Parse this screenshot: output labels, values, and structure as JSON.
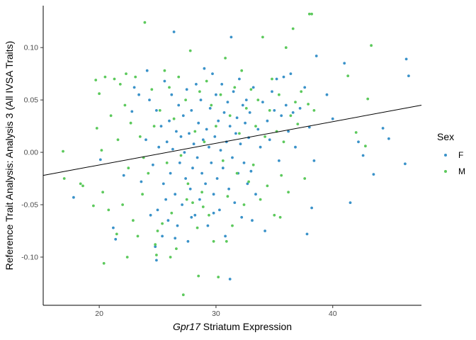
{
  "chart_data": {
    "type": "scatter",
    "xlabel_italic": "Gpr17",
    "xlabel_rest": " Striatum Expression",
    "ylabel": "Reference Trait Analysis: Analysis 3 (All IVSA Traits)",
    "xlim": [
      15.2,
      47.6
    ],
    "ylim": [
      -0.146,
      0.14
    ],
    "x_ticks": [
      20,
      30,
      40
    ],
    "x_tick_labels": [
      "20",
      "30",
      "40"
    ],
    "y_ticks": [
      -0.1,
      -0.05,
      0.0,
      0.05,
      0.1
    ],
    "y_tick_labels": [
      "-0.10",
      "-0.05",
      "0.00",
      "0.05",
      "0.10"
    ],
    "grid": false,
    "legend": {
      "title": "Sex",
      "placement": "right",
      "entries": [
        {
          "label": "F",
          "color": "#3a92c9"
        },
        {
          "label": "M",
          "color": "#5cc95c"
        }
      ]
    },
    "trend_line": {
      "x": [
        15.2,
        47.6
      ],
      "y": [
        -0.022,
        0.045
      ],
      "color": "#000000"
    },
    "series": [
      {
        "name": "F",
        "color": "#3a92c9",
        "points": [
          [
            17.8,
            -0.043
          ],
          [
            20.1,
            -0.007
          ],
          [
            21.2,
            -0.072
          ],
          [
            21.4,
            -0.083
          ],
          [
            22.1,
            -0.022
          ],
          [
            22.8,
            0.039
          ],
          [
            23.0,
            0.062
          ],
          [
            23.4,
            0.055
          ],
          [
            23.6,
            -0.028
          ],
          [
            24.0,
            0.012
          ],
          [
            24.1,
            0.078
          ],
          [
            24.3,
            0.05
          ],
          [
            24.4,
            -0.06
          ],
          [
            24.6,
            -0.012
          ],
          [
            24.8,
            -0.09
          ],
          [
            24.9,
            0.04
          ],
          [
            25.0,
            -0.055
          ],
          [
            25.1,
            0.005
          ],
          [
            25.3,
            0.025
          ],
          [
            25.4,
            -0.08
          ],
          [
            25.5,
            -0.03
          ],
          [
            25.6,
            0.068
          ],
          [
            25.7,
            -0.045
          ],
          [
            25.8,
            0.01
          ],
          [
            25.9,
            -0.065
          ],
          [
            26.0,
            0.03
          ],
          [
            26.1,
            -0.02
          ],
          [
            26.2,
            0.055
          ],
          [
            26.3,
            0.003
          ],
          [
            26.4,
            0.115
          ],
          [
            26.5,
            -0.04
          ],
          [
            26.6,
            0.02
          ],
          [
            26.7,
            -0.07
          ],
          [
            26.8,
            0.045
          ],
          [
            26.9,
            -0.01
          ],
          [
            27.0,
            0.015
          ],
          [
            27.1,
            -0.05
          ],
          [
            27.2,
            0.035
          ],
          [
            27.3,
            0.0
          ],
          [
            27.4,
            -0.025
          ],
          [
            27.5,
            0.06
          ],
          [
            27.6,
            -0.085
          ],
          [
            27.7,
            0.018
          ],
          [
            27.8,
            -0.035
          ],
          [
            27.9,
            0.04
          ],
          [
            28.0,
            -0.015
          ],
          [
            28.1,
            0.008
          ],
          [
            28.2,
            -0.06
          ],
          [
            28.3,
            0.065
          ],
          [
            28.4,
            -0.005
          ],
          [
            28.5,
            0.028
          ],
          [
            28.6,
            -0.045
          ],
          [
            28.7,
            0.05
          ],
          [
            28.8,
            -0.02
          ],
          [
            28.9,
            0.012
          ],
          [
            29.0,
            0.08
          ],
          [
            29.1,
            -0.03
          ],
          [
            29.2,
            0.022
          ],
          [
            29.3,
            -0.07
          ],
          [
            29.4,
            0.005
          ],
          [
            29.5,
            0.042
          ],
          [
            29.6,
            -0.01
          ],
          [
            29.7,
            0.075
          ],
          [
            29.8,
            -0.04
          ],
          [
            29.9,
            0.015
          ],
          [
            30.0,
            0.055
          ],
          [
            30.1,
            -0.025
          ],
          [
            30.2,
            0.03
          ],
          [
            30.3,
            -0.055
          ],
          [
            30.4,
            0.002
          ],
          [
            30.5,
            0.065
          ],
          [
            30.6,
            -0.015
          ],
          [
            30.7,
            0.038
          ],
          [
            30.8,
            -0.08
          ],
          [
            30.9,
            0.01
          ],
          [
            31.0,
            0.048
          ],
          [
            31.1,
            -0.035
          ],
          [
            31.2,
            0.025
          ],
          [
            31.3,
            0.11
          ],
          [
            31.4,
            -0.005
          ],
          [
            31.5,
            0.058
          ],
          [
            31.6,
            -0.048
          ],
          [
            31.7,
            0.018
          ],
          [
            31.8,
            0.033
          ],
          [
            31.9,
            -0.02
          ],
          [
            32.0,
            0.07
          ],
          [
            32.1,
            0.008
          ],
          [
            32.2,
            -0.062
          ],
          [
            32.3,
            0.045
          ],
          [
            32.4,
            -0.01
          ],
          [
            32.5,
            0.028
          ],
          [
            32.6,
            0.05
          ],
          [
            32.7,
            -0.03
          ],
          [
            32.8,
            0.014
          ],
          [
            32.9,
            0.038
          ],
          [
            33.0,
            -0.018
          ],
          [
            33.2,
            0.062
          ],
          [
            33.4,
            -0.04
          ],
          [
            33.6,
            0.022
          ],
          [
            33.8,
            0.005
          ],
          [
            34.0,
            0.048
          ],
          [
            34.2,
            -0.075
          ],
          [
            34.4,
            0.03
          ],
          [
            34.6,
            0.012
          ],
          [
            34.8,
            0.058
          ],
          [
            35.0,
            0.04
          ],
          [
            35.2,
            0.07
          ],
          [
            35.4,
            -0.008
          ],
          [
            35.6,
            0.035
          ],
          [
            35.8,
            0.072
          ],
          [
            36.0,
            0.045
          ],
          [
            36.2,
            0.02
          ],
          [
            36.4,
            0.075
          ],
          [
            36.6,
            0.038
          ],
          [
            36.8,
            0.005
          ],
          [
            37.2,
            0.042
          ],
          [
            37.6,
            0.062
          ],
          [
            37.8,
            -0.078
          ],
          [
            38.0,
            0.024
          ],
          [
            38.2,
            -0.053
          ],
          [
            38.4,
            -0.008
          ],
          [
            38.6,
            0.092
          ],
          [
            39.5,
            0.055
          ],
          [
            40.0,
            0.032
          ],
          [
            41.0,
            0.085
          ],
          [
            41.5,
            -0.048
          ],
          [
            42.2,
            0.01
          ],
          [
            42.6,
            -0.003
          ],
          [
            43.5,
            -0.021
          ],
          [
            44.3,
            0.023
          ],
          [
            44.8,
            0.013
          ],
          [
            46.2,
            -0.011
          ],
          [
            46.3,
            0.089
          ],
          [
            46.5,
            0.073
          ],
          [
            26.5,
            -0.082
          ],
          [
            27.9,
            -0.062
          ],
          [
            31.2,
            -0.121
          ],
          [
            29.8,
            -0.058
          ],
          [
            33.1,
            -0.065
          ],
          [
            24.9,
            -0.103
          ]
        ]
      },
      {
        "name": "M",
        "color": "#5cc95c",
        "points": [
          [
            16.9,
            0.001
          ],
          [
            17.0,
            -0.025
          ],
          [
            18.4,
            -0.03
          ],
          [
            18.6,
            -0.032
          ],
          [
            19.5,
            -0.051
          ],
          [
            19.7,
            0.069
          ],
          [
            19.8,
            0.023
          ],
          [
            20.0,
            0.056
          ],
          [
            20.2,
            0.002
          ],
          [
            20.3,
            -0.038
          ],
          [
            20.4,
            -0.106
          ],
          [
            20.5,
            0.072
          ],
          [
            20.8,
            -0.055
          ],
          [
            21.0,
            0.035
          ],
          [
            21.3,
            0.07
          ],
          [
            21.5,
            -0.078
          ],
          [
            21.6,
            0.012
          ],
          [
            21.8,
            0.065
          ],
          [
            22.0,
            -0.05
          ],
          [
            22.2,
            0.045
          ],
          [
            22.3,
            0.075
          ],
          [
            22.5,
            -0.015
          ],
          [
            22.7,
            0.028
          ],
          [
            22.9,
            -0.065
          ],
          [
            23.1,
            0.072
          ],
          [
            23.3,
            -0.08
          ],
          [
            23.5,
            0.015
          ],
          [
            23.7,
            -0.04
          ],
          [
            23.9,
            0.124
          ],
          [
            24.2,
            -0.02
          ],
          [
            24.5,
            0.06
          ],
          [
            24.7,
            0.025
          ],
          [
            24.9,
            -0.098
          ],
          [
            25.2,
            0.04
          ],
          [
            25.4,
            -0.068
          ],
          [
            25.6,
            0.078
          ],
          [
            25.8,
            -0.01
          ],
          [
            26.0,
            0.062
          ],
          [
            26.2,
            -0.058
          ],
          [
            26.4,
            0.032
          ],
          [
            26.6,
            -0.092
          ],
          [
            26.8,
            0.072
          ],
          [
            27.0,
            -0.003
          ],
          [
            27.2,
            -0.136
          ],
          [
            27.4,
            0.05
          ],
          [
            27.6,
            -0.03
          ],
          [
            27.8,
            0.097
          ],
          [
            28.0,
            -0.048
          ],
          [
            28.2,
            0.02
          ],
          [
            28.4,
            -0.072
          ],
          [
            28.6,
            0.058
          ],
          [
            28.8,
            -0.038
          ],
          [
            29.0,
            0.01
          ],
          [
            29.2,
            0.068
          ],
          [
            29.4,
            -0.06
          ],
          [
            29.6,
            0.045
          ],
          [
            29.8,
            -0.085
          ],
          [
            30.0,
            0.025
          ],
          [
            30.2,
            -0.119
          ],
          [
            30.4,
            0.055
          ],
          [
            30.6,
            -0.008
          ],
          [
            30.8,
            0.09
          ],
          [
            31.0,
            -0.042
          ],
          [
            31.2,
            0.035
          ],
          [
            31.4,
            -0.07
          ],
          [
            31.6,
            0.062
          ],
          [
            31.8,
            -0.02
          ],
          [
            32.0,
            0.018
          ],
          [
            32.2,
            0.078
          ],
          [
            32.4,
            -0.05
          ],
          [
            32.6,
            0.042
          ],
          [
            32.8,
            -0.028
          ],
          [
            33.0,
            0.06
          ],
          [
            33.2,
            -0.012
          ],
          [
            33.4,
            0.025
          ],
          [
            33.6,
            0.05
          ],
          [
            33.8,
            -0.045
          ],
          [
            34.0,
            0.11
          ],
          [
            34.2,
            0.015
          ],
          [
            34.4,
            -0.032
          ],
          [
            34.6,
            0.04
          ],
          [
            34.8,
            0.07
          ],
          [
            35.0,
            -0.06
          ],
          [
            35.2,
            0.02
          ],
          [
            35.4,
            0.055
          ],
          [
            35.6,
            -0.022
          ],
          [
            35.8,
            0.01
          ],
          [
            36.0,
            0.1
          ],
          [
            36.2,
            -0.038
          ],
          [
            36.4,
            0.035
          ],
          [
            36.6,
            0.118
          ],
          [
            36.8,
            0.048
          ],
          [
            37.0,
            0.027
          ],
          [
            37.3,
            0.058
          ],
          [
            37.6,
            -0.025
          ],
          [
            37.9,
            0.046
          ],
          [
            38.2,
            0.132
          ],
          [
            38.4,
            0.04
          ],
          [
            41.3,
            0.073
          ],
          [
            42.0,
            0.019
          ],
          [
            42.8,
            0.006
          ],
          [
            43.0,
            0.051
          ],
          [
            43.3,
            0.102
          ],
          [
            38.0,
            0.132
          ],
          [
            28.5,
            -0.118
          ],
          [
            26.1,
            -0.1
          ],
          [
            25.0,
            -0.075
          ],
          [
            22.4,
            -0.1
          ],
          [
            23.8,
            -0.005
          ],
          [
            24.8,
            -0.088
          ],
          [
            28.9,
            -0.052
          ],
          [
            35.5,
            -0.062
          ],
          [
            30.9,
            -0.085
          ],
          [
            27.5,
            -0.045
          ]
        ]
      }
    ]
  }
}
